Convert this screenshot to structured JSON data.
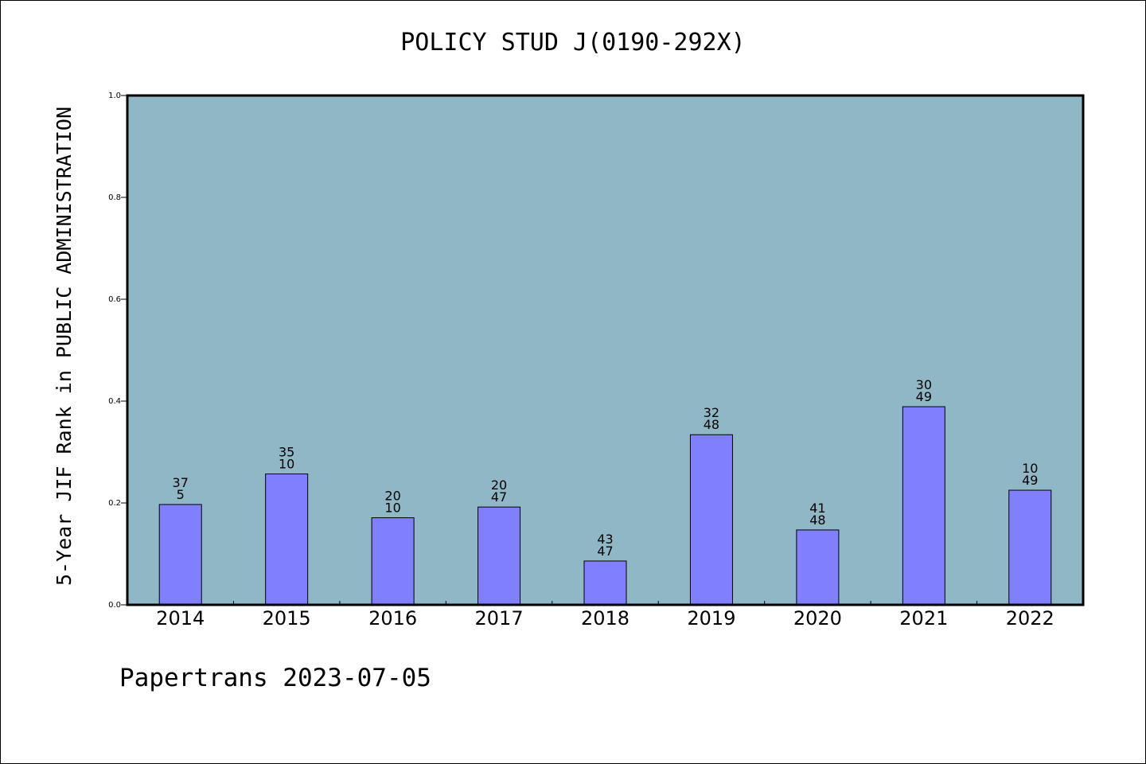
{
  "title": "POLICY STUD J(0190-292X)",
  "footer": "Papertrans 2023-07-05",
  "colors": {
    "plot_background": "#8FB7C5",
    "bar_fill": "#8080FF",
    "bar_stroke": "#000000",
    "axis": "#000000"
  },
  "chart_data": {
    "type": "bar",
    "title": "POLICY STUD J(0190-292X)",
    "xlabel": "",
    "ylabel": "5-Year JIF Rank in PUBLIC ADMINISTRATION",
    "ylim": [
      0.0,
      1.0
    ],
    "yticks": [
      "0.0",
      "0.2",
      "0.4",
      "0.6",
      "0.8",
      "1.0"
    ],
    "grid": false,
    "categories": [
      "2014",
      "2015",
      "2016",
      "2017",
      "2018",
      "2019",
      "2020",
      "2021",
      "2022"
    ],
    "values": [
      0.197,
      0.257,
      0.171,
      0.192,
      0.086,
      0.334,
      0.147,
      0.389,
      0.225
    ],
    "labels_top": [
      "37",
      "35",
      "20",
      "20",
      "43",
      "32",
      "41",
      "30",
      "10"
    ],
    "labels_bottom": [
      "5",
      "10",
      "10",
      "47",
      "47",
      "48",
      "48",
      "49",
      "49"
    ]
  }
}
